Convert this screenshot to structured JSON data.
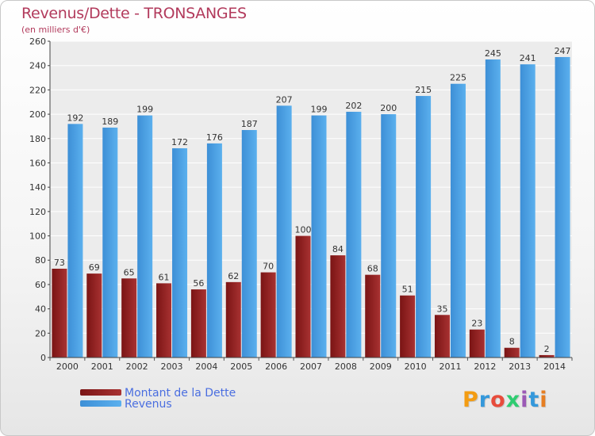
{
  "chart_data": {
    "type": "bar",
    "title": "Revenus/Dette - TRONSANGES",
    "subtitle": "(en milliers d'€)",
    "categories": [
      "2000",
      "2001",
      "2002",
      "2003",
      "2004",
      "2005",
      "2006",
      "2007",
      "2008",
      "2009",
      "2010",
      "2011",
      "2012",
      "2013",
      "2014"
    ],
    "series": [
      {
        "name": "Montant de la Dette",
        "color": "#8b1a1a",
        "values": [
          73,
          69,
          65,
          61,
          56,
          62,
          70,
          100,
          84,
          68,
          51,
          35,
          23,
          8,
          2
        ]
      },
      {
        "name": "Revenus",
        "color": "#4aa0e6",
        "values": [
          192,
          189,
          199,
          172,
          176,
          187,
          207,
          199,
          202,
          200,
          215,
          225,
          245,
          241,
          247
        ]
      }
    ],
    "yticks": [
      0,
      20,
      40,
      60,
      80,
      100,
      120,
      140,
      160,
      180,
      200,
      220,
      240,
      260
    ],
    "ylim": [
      0,
      260
    ],
    "grid": true,
    "legend_placement": "bottom-left"
  },
  "logo": {
    "letters": [
      "P",
      "r",
      "o",
      "x",
      "i",
      "t",
      "i"
    ],
    "colors": [
      "#f39c12",
      "#3498db",
      "#e74c3c",
      "#2ecc71",
      "#9b59b6",
      "#3498db",
      "#e67e22"
    ]
  }
}
